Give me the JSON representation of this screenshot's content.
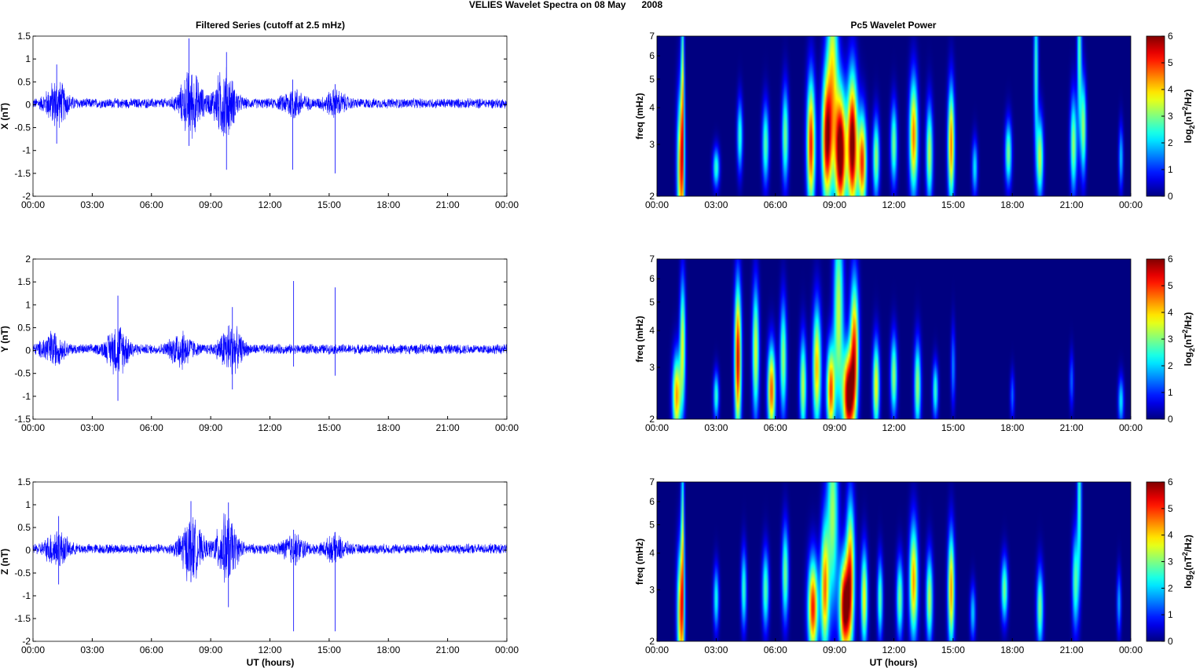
{
  "figure": {
    "title": "VELIES Wavelet Spectra on 08 May      2008",
    "left_column_title": "Filtered Series (cutoff at 2.5 mHz)",
    "right_column_title": "Pc5 Wavelet Power",
    "bottom_xlabel": "UT (hours)",
    "time_ticks": [
      "00:00",
      "03:00",
      "06:00",
      "09:00",
      "12:00",
      "15:00",
      "18:00",
      "21:00",
      "00:00"
    ]
  },
  "chart_data": [
    {
      "type": "line",
      "panel": "left-1",
      "ylabel": "X (nT)",
      "xlabel": "",
      "xlim": [
        0,
        24
      ],
      "ylim": [
        -2,
        1.5
      ],
      "yticks": [
        "1.5",
        "1",
        "0.5",
        "0",
        "-0.5",
        "-1",
        "-1.5",
        "-2"
      ],
      "color": "#0000ff",
      "baseline": 0.03,
      "noise_amp": 0.12,
      "bursts": [
        [
          1.2,
          0.5
        ],
        [
          8.0,
          0.75
        ],
        [
          9.7,
          0.8
        ],
        [
          13.2,
          0.3
        ],
        [
          15.3,
          0.25
        ]
      ],
      "spikes": [
        [
          1.2,
          0.88,
          -0.85
        ],
        [
          7.9,
          1.45,
          -0.9
        ],
        [
          9.8,
          1.15,
          -1.42
        ],
        [
          13.15,
          0.55,
          -1.42
        ],
        [
          15.3,
          0.45,
          -1.5
        ]
      ]
    },
    {
      "type": "line",
      "panel": "left-2",
      "ylabel": "Y (nT)",
      "xlabel": "",
      "xlim": [
        0,
        24
      ],
      "ylim": [
        -1.5,
        2
      ],
      "yticks": [
        "2",
        "1.5",
        "1",
        "0.5",
        "0",
        "-0.5",
        "-1",
        "-1.5"
      ],
      "color": "#0000ff",
      "baseline": 0.03,
      "noise_amp": 0.12,
      "bursts": [
        [
          1.0,
          0.35
        ],
        [
          4.3,
          0.55
        ],
        [
          7.5,
          0.4
        ],
        [
          10.0,
          0.55
        ]
      ],
      "spikes": [
        [
          4.3,
          1.2,
          -1.1
        ],
        [
          10.1,
          0.95,
          -0.85
        ],
        [
          13.2,
          1.52,
          -0.35
        ],
        [
          15.3,
          1.38,
          -0.55
        ]
      ]
    },
    {
      "type": "line",
      "panel": "left-3",
      "ylabel": "Z (nT)",
      "xlabel": "UT (hours)",
      "xlim": [
        0,
        24
      ],
      "ylim": [
        -2,
        1.5
      ],
      "yticks": [
        "1.5",
        "1",
        "0.5",
        "0",
        "-0.5",
        "-1",
        "-1.5",
        "-2"
      ],
      "color": "#0000ff",
      "baseline": 0.03,
      "noise_amp": 0.12,
      "bursts": [
        [
          1.2,
          0.4
        ],
        [
          8.0,
          0.7
        ],
        [
          9.8,
          0.75
        ],
        [
          13.2,
          0.3
        ],
        [
          15.3,
          0.25
        ]
      ],
      "spikes": [
        [
          1.3,
          0.75,
          -0.75
        ],
        [
          8.0,
          1.08,
          -0.7
        ],
        [
          9.9,
          1.05,
          -1.25
        ],
        [
          13.2,
          0.45,
          -1.78
        ],
        [
          15.3,
          0.4,
          -1.78
        ]
      ]
    },
    {
      "type": "heatmap",
      "panel": "right-1",
      "ylabel": "freq (mHz)",
      "xlabel": "",
      "xlim": [
        0,
        24
      ],
      "ylim": [
        2,
        7
      ],
      "yscale": "log",
      "yticks": [
        "7",
        "6",
        "5",
        "4",
        "3",
        "2"
      ],
      "colorbar_label": "log2(nT^2/Hz)",
      "colorbar_ticks": [
        "6",
        "5",
        "4",
        "3",
        "2",
        "1",
        "0"
      ],
      "clim": [
        0,
        6
      ],
      "colormap": "jet",
      "blobs": [
        [
          1.2,
          2.5,
          0.13,
          0.9,
          4.5
        ],
        [
          1.3,
          4.4,
          0.06,
          1.3,
          3.2
        ],
        [
          3.0,
          2.5,
          0.12,
          0.25,
          2.6
        ],
        [
          4.2,
          3.2,
          0.1,
          0.45,
          2.6
        ],
        [
          5.5,
          3.0,
          0.12,
          0.5,
          2.8
        ],
        [
          6.5,
          3.2,
          0.12,
          0.6,
          3.0
        ],
        [
          7.8,
          3.0,
          0.15,
          0.8,
          5.2
        ],
        [
          8.6,
          3.1,
          0.18,
          0.8,
          5.5
        ],
        [
          9.3,
          2.8,
          0.2,
          0.75,
          6.6
        ],
        [
          9.9,
          3.0,
          0.18,
          0.85,
          6.4
        ],
        [
          10.4,
          2.6,
          0.15,
          0.6,
          5.0
        ],
        [
          8.9,
          5.5,
          0.2,
          1.2,
          3.5
        ],
        [
          11.1,
          2.7,
          0.12,
          0.5,
          3.2
        ],
        [
          12.0,
          3.0,
          0.12,
          0.5,
          3.0
        ],
        [
          13.0,
          3.2,
          0.15,
          0.7,
          4.6
        ],
        [
          13.8,
          2.8,
          0.12,
          0.6,
          3.4
        ],
        [
          14.9,
          3.0,
          0.12,
          0.7,
          4.6
        ],
        [
          16.1,
          2.5,
          0.1,
          0.35,
          2.2
        ],
        [
          17.8,
          2.8,
          0.12,
          0.4,
          3.0
        ],
        [
          19.4,
          2.7,
          0.12,
          0.5,
          3.4
        ],
        [
          21.1,
          3.0,
          0.12,
          0.6,
          3.2
        ],
        [
          21.6,
          3.4,
          0.1,
          0.6,
          3.2
        ],
        [
          23.5,
          2.7,
          0.08,
          0.4,
          2.0
        ],
        [
          19.2,
          5.5,
          0.08,
          1.0,
          2.6
        ],
        [
          21.4,
          6.2,
          0.08,
          1.0,
          2.8
        ]
      ]
    },
    {
      "type": "heatmap",
      "panel": "right-2",
      "ylabel": "freq (mHz)",
      "xlabel": "",
      "xlim": [
        0,
        24
      ],
      "ylim": [
        2,
        7
      ],
      "yscale": "log",
      "yticks": [
        "7",
        "6",
        "5",
        "4",
        "3",
        "2"
      ],
      "colorbar_label": "log2(nT^2/Hz)",
      "colorbar_ticks": [
        "6",
        "5",
        "4",
        "3",
        "2",
        "1",
        "0"
      ],
      "clim": [
        0,
        6
      ],
      "colormap": "jet",
      "blobs": [
        [
          1.0,
          2.4,
          0.15,
          0.5,
          4.4
        ],
        [
          1.3,
          3.6,
          0.1,
          0.8,
          3.6
        ],
        [
          3.0,
          2.4,
          0.1,
          0.3,
          2.6
        ],
        [
          4.1,
          3.2,
          0.12,
          0.9,
          5.6
        ],
        [
          5.0,
          3.4,
          0.12,
          0.8,
          3.6
        ],
        [
          5.8,
          2.5,
          0.14,
          0.55,
          4.8
        ],
        [
          6.4,
          3.2,
          0.12,
          0.7,
          3.2
        ],
        [
          7.4,
          2.6,
          0.12,
          0.6,
          3.4
        ],
        [
          8.1,
          3.0,
          0.15,
          0.75,
          4.2
        ],
        [
          8.8,
          2.5,
          0.15,
          0.55,
          4.8
        ],
        [
          9.7,
          2.4,
          0.2,
          0.55,
          6.2
        ],
        [
          10.0,
          3.5,
          0.15,
          0.85,
          4.8
        ],
        [
          9.2,
          4.6,
          0.18,
          1.2,
          3.4
        ],
        [
          11.1,
          2.6,
          0.12,
          0.55,
          3.8
        ],
        [
          12.0,
          2.8,
          0.12,
          0.5,
          3.2
        ],
        [
          13.2,
          2.6,
          0.12,
          0.55,
          3.2
        ],
        [
          14.1,
          2.5,
          0.1,
          0.35,
          2.6
        ],
        [
          15.0,
          3.0,
          0.08,
          0.5,
          1.6
        ],
        [
          18.0,
          2.4,
          0.08,
          0.3,
          1.4
        ],
        [
          21.0,
          2.7,
          0.08,
          0.35,
          1.4
        ],
        [
          23.5,
          2.3,
          0.1,
          0.3,
          2.2
        ]
      ]
    },
    {
      "type": "heatmap",
      "panel": "right-3",
      "ylabel": "freq (mHz)",
      "xlabel": "UT (hours)",
      "xlim": [
        0,
        24
      ],
      "ylim": [
        2,
        7
      ],
      "yscale": "log",
      "yticks": [
        "7",
        "6",
        "5",
        "4",
        "3",
        "2"
      ],
      "colorbar_label": "log2(nT^2/Hz)",
      "colorbar_ticks": [
        "6",
        "5",
        "4",
        "3",
        "2",
        "1",
        "0"
      ],
      "clim": [
        0,
        6
      ],
      "colormap": "jet",
      "blobs": [
        [
          1.2,
          2.5,
          0.13,
          0.8,
          4.4
        ],
        [
          1.3,
          4.3,
          0.06,
          1.3,
          3.0
        ],
        [
          3.0,
          2.8,
          0.1,
          0.4,
          2.4
        ],
        [
          4.4,
          3.0,
          0.1,
          0.5,
          2.6
        ],
        [
          5.5,
          3.0,
          0.12,
          0.5,
          2.8
        ],
        [
          6.5,
          3.4,
          0.12,
          0.6,
          3.0
        ],
        [
          7.9,
          2.6,
          0.18,
          0.6,
          5.2
        ],
        [
          8.5,
          3.0,
          0.15,
          0.8,
          4.4
        ],
        [
          9.5,
          2.6,
          0.18,
          0.6,
          6.0
        ],
        [
          9.8,
          3.4,
          0.15,
          0.9,
          4.6
        ],
        [
          10.5,
          2.8,
          0.12,
          0.6,
          3.8
        ],
        [
          8.9,
          5.5,
          0.2,
          1.2,
          3.2
        ],
        [
          11.3,
          2.8,
          0.1,
          0.5,
          2.8
        ],
        [
          12.3,
          2.8,
          0.12,
          0.5,
          3.0
        ],
        [
          13.0,
          3.2,
          0.15,
          0.7,
          4.4
        ],
        [
          13.8,
          2.8,
          0.12,
          0.55,
          3.4
        ],
        [
          14.9,
          3.0,
          0.12,
          0.7,
          4.4
        ],
        [
          16.0,
          2.5,
          0.1,
          0.35,
          2.0
        ],
        [
          17.6,
          3.0,
          0.12,
          0.4,
          3.0
        ],
        [
          19.4,
          2.6,
          0.12,
          0.5,
          3.0
        ],
        [
          21.2,
          3.2,
          0.12,
          0.6,
          2.8
        ],
        [
          23.4,
          2.7,
          0.08,
          0.4,
          1.8
        ],
        [
          21.4,
          6.2,
          0.08,
          1.0,
          2.6
        ]
      ]
    }
  ]
}
